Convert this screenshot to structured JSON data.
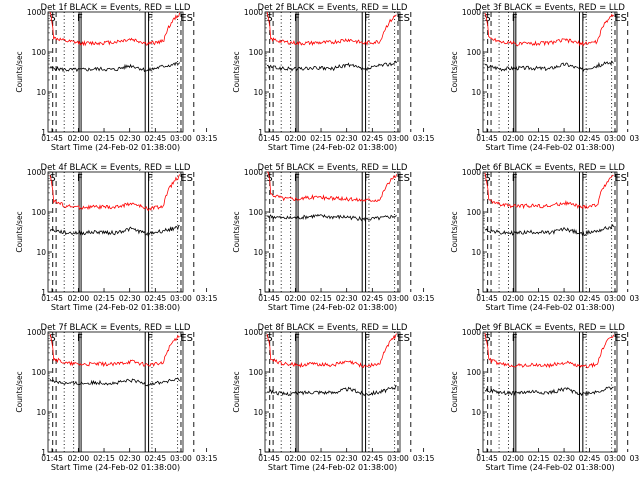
{
  "colors": {
    "events": "#000000",
    "lld": "#ff0000",
    "axis": "#000000",
    "background": "#ffffff"
  },
  "chart_data": [
    {
      "type": "line",
      "title": "Det 1f BLACK = Events, RED = LLD",
      "xlabel": "Start Time (24-Feb-02 01:38:00)",
      "ylabel": "Counts/sec",
      "xticks": [
        "01:45",
        "02:00",
        "02:15",
        "02:30",
        "02:45",
        "03:00",
        "03:15"
      ],
      "yticks": [
        "1",
        "10",
        "100",
        "1000"
      ],
      "ylim": [
        1,
        1000
      ],
      "yscale": "log",
      "markers": [
        "S",
        "F",
        "F",
        "ES"
      ],
      "series": [
        {
          "values": [
            40,
            36,
            36,
            38,
            36,
            46,
            34,
            44,
            52
          ]
        },
        {
          "values": [
            235,
            185,
            165,
            168,
            178,
            210,
            160,
            185,
            900
          ]
        }
      ]
    },
    {
      "type": "line",
      "title": "Det 2f BLACK = Events, RED = LLD",
      "xlabel": "Start Time (24-Feb-02 01:38:00)",
      "ylabel": "Counts/sec",
      "xticks": [
        "01:45",
        "02:00",
        "02:15",
        "02:30",
        "02:45",
        "03:00",
        "03:15"
      ],
      "yticks": [
        "1",
        "10",
        "100",
        "1000"
      ],
      "ylim": [
        1,
        1000
      ],
      "yscale": "log",
      "markers": [
        "S",
        "F",
        "F",
        "ES"
      ],
      "series": [
        {
          "values": [
            44,
            38,
            38,
            40,
            38,
            48,
            36,
            46,
            54
          ]
        },
        {
          "values": [
            220,
            180,
            165,
            170,
            175,
            205,
            165,
            185,
            850
          ]
        }
      ]
    },
    {
      "type": "line",
      "title": "Det 3f BLACK = Events, RED = LLD",
      "xlabel": "Start Time (24-Feb-02 01:38:00)",
      "ylabel": "Counts/sec",
      "xticks": [
        "01:45",
        "02:00",
        "02:15",
        "02:30",
        "02:45",
        "03:00",
        "03:15"
      ],
      "yticks": [
        "1",
        "10",
        "100",
        "1000"
      ],
      "ylim": [
        1,
        1000
      ],
      "yscale": "log",
      "markers": [
        "S",
        "F",
        "F",
        "ES"
      ],
      "series": [
        {
          "values": [
            46,
            38,
            40,
            40,
            38,
            50,
            36,
            46,
            56
          ]
        },
        {
          "values": [
            240,
            180,
            160,
            165,
            170,
            200,
            160,
            180,
            900
          ]
        }
      ]
    },
    {
      "type": "line",
      "title": "Det 4f BLACK = Events, RED = LLD",
      "xlabel": "Start Time (24-Feb-02 01:38:00)",
      "ylabel": "Counts/sec",
      "xticks": [
        "01:45",
        "02:00",
        "02:15",
        "02:30",
        "02:45",
        "03:00",
        "03:15"
      ],
      "yticks": [
        "1",
        "10",
        "100",
        "1000"
      ],
      "ylim": [
        1,
        1000
      ],
      "yscale": "log",
      "markers": [
        "S",
        "F",
        "F",
        "ES"
      ],
      "series": [
        {
          "values": [
            36,
            30,
            30,
            32,
            30,
            38,
            28,
            34,
            42
          ]
        },
        {
          "values": [
            200,
            140,
            130,
            135,
            130,
            165,
            120,
            140,
            800
          ]
        }
      ]
    },
    {
      "type": "line",
      "title": "Det 5f BLACK = Events, RED = LLD",
      "xlabel": "Start Time (24-Feb-02 01:38:00)",
      "ylabel": "Counts/sec",
      "xticks": [
        "01:45",
        "02:00",
        "02:15",
        "02:30",
        "02:45",
        "03:00",
        "03:15"
      ],
      "yticks": [
        "1",
        "10",
        "100",
        "1000"
      ],
      "ylim": [
        1,
        1000
      ],
      "yscale": "log",
      "markers": [
        "S",
        "F",
        "F",
        "ES"
      ],
      "series": [
        {
          "values": [
            80,
            70,
            72,
            80,
            75,
            75,
            65,
            70,
            80
          ]
        },
        {
          "values": [
            300,
            220,
            215,
            240,
            220,
            210,
            200,
            205,
            850
          ]
        }
      ]
    },
    {
      "type": "line",
      "title": "Det 6f BLACK = Events, RED = LLD",
      "xlabel": "Start Time (24-Feb-02 01:38:00)",
      "ylabel": "Counts/sec",
      "xticks": [
        "01:45",
        "02:00",
        "02:15",
        "02:30",
        "02:45",
        "03:00",
        "03:15"
      ],
      "yticks": [
        "1",
        "10",
        "100",
        "1000"
      ],
      "ylim": [
        1,
        1000
      ],
      "yscale": "log",
      "markers": [
        "S",
        "F",
        "F",
        "ES"
      ],
      "series": [
        {
          "values": [
            36,
            30,
            30,
            32,
            30,
            38,
            28,
            34,
            44
          ]
        },
        {
          "values": [
            210,
            150,
            140,
            145,
            140,
            170,
            130,
            150,
            850
          ]
        }
      ]
    },
    {
      "type": "line",
      "title": "Det 7f BLACK = Events, RED = LLD",
      "xlabel": "Start Time (24-Feb-02 01:38:00)",
      "ylabel": "Counts/sec",
      "xticks": [
        "01:45",
        "02:00",
        "02:15",
        "02:30",
        "02:45",
        "03:00",
        "03:15"
      ],
      "yticks": [
        "1",
        "10",
        "100",
        "1000"
      ],
      "ylim": [
        1,
        1000
      ],
      "yscale": "log",
      "markers": [
        "S",
        "F",
        "F",
        "ES"
      ],
      "series": [
        {
          "values": [
            62,
            52,
            52,
            55,
            52,
            62,
            50,
            56,
            66
          ]
        },
        {
          "values": [
            230,
            165,
            155,
            160,
            155,
            185,
            150,
            165,
            850
          ]
        }
      ]
    },
    {
      "type": "line",
      "title": "Det 8f BLACK = Events, RED = LLD",
      "xlabel": "Start Time (24-Feb-02 01:38:00)",
      "ylabel": "Counts/sec",
      "xticks": [
        "01:45",
        "02:00",
        "02:15",
        "02:30",
        "02:45",
        "03:00",
        "03:15"
      ],
      "yticks": [
        "1",
        "10",
        "100",
        "1000"
      ],
      "ylim": [
        1,
        1000
      ],
      "yscale": "log",
      "markers": [
        "S",
        "F",
        "F",
        "ES"
      ],
      "series": [
        {
          "values": [
            34,
            28,
            30,
            32,
            30,
            38,
            28,
            32,
            42
          ]
        },
        {
          "values": [
            220,
            160,
            150,
            160,
            150,
            180,
            140,
            160,
            850
          ]
        }
      ]
    },
    {
      "type": "line",
      "title": "Det 9f BLACK = Events, RED = LLD",
      "xlabel": "Start Time (24-Feb-02 01:38:00)",
      "ylabel": "Counts/sec",
      "xticks": [
        "01:45",
        "02:00",
        "02:15",
        "02:30",
        "02:45",
        "03:00",
        "03:15"
      ],
      "yticks": [
        "1",
        "10",
        "100",
        "1000"
      ],
      "ylim": [
        1,
        1000
      ],
      "yscale": "log",
      "markers": [
        "S",
        "F",
        "F",
        "ES"
      ],
      "series": [
        {
          "values": [
            36,
            30,
            30,
            32,
            30,
            38,
            28,
            32,
            42
          ]
        },
        {
          "values": [
            220,
            155,
            145,
            150,
            145,
            175,
            135,
            155,
            850
          ]
        }
      ]
    }
  ]
}
